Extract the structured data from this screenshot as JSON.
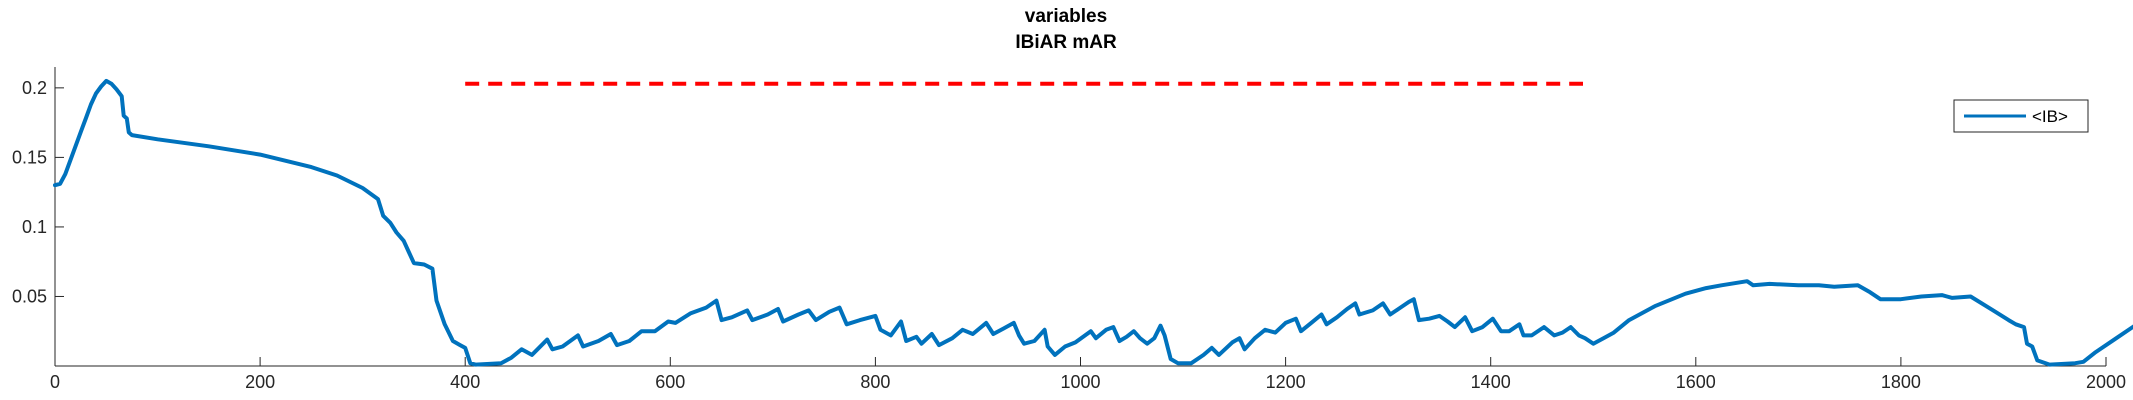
{
  "chart_data": {
    "type": "line",
    "title": "variables",
    "subtitle": "IBiAR mAR",
    "xlabel": "",
    "ylabel": "",
    "xlim": [
      0,
      2000
    ],
    "ylim": [
      0,
      0.215
    ],
    "x_ticks": [
      0,
      200,
      400,
      600,
      800,
      1000,
      1200,
      1400,
      1600,
      1800,
      2000
    ],
    "y_ticks": [
      0.05,
      0.1,
      0.15,
      0.2
    ],
    "y_tick_labels": [
      "0.05",
      "0.1",
      "0.15",
      "0.2"
    ],
    "grid": false,
    "legend_position": "top-right",
    "colors": {
      "series": "#0072BD",
      "reference": "#FF0000"
    },
    "reference_line": {
      "x": [
        400,
        1490
      ],
      "y": 0.203,
      "style": "dashed"
    },
    "series": [
      {
        "name": "<IB>",
        "points": [
          [
            0,
            0.13
          ],
          [
            5,
            0.131
          ],
          [
            10,
            0.138
          ],
          [
            15,
            0.148
          ],
          [
            20,
            0.158
          ],
          [
            25,
            0.168
          ],
          [
            30,
            0.178
          ],
          [
            35,
            0.188
          ],
          [
            40,
            0.196
          ],
          [
            45,
            0.201
          ],
          [
            50,
            0.205
          ],
          [
            55,
            0.203
          ],
          [
            60,
            0.199
          ],
          [
            65,
            0.194
          ],
          [
            67,
            0.18
          ],
          [
            70,
            0.178
          ],
          [
            72,
            0.168
          ],
          [
            75,
            0.166
          ],
          [
            100,
            0.163
          ],
          [
            150,
            0.158
          ],
          [
            200,
            0.152
          ],
          [
            250,
            0.143
          ],
          [
            275,
            0.137
          ],
          [
            300,
            0.128
          ],
          [
            315,
            0.12
          ],
          [
            320,
            0.108
          ],
          [
            327,
            0.103
          ],
          [
            333,
            0.096
          ],
          [
            340,
            0.09
          ],
          [
            345,
            0.082
          ],
          [
            350,
            0.074
          ],
          [
            360,
            0.073
          ],
          [
            368,
            0.07
          ],
          [
            372,
            0.047
          ],
          [
            380,
            0.03
          ],
          [
            388,
            0.018
          ],
          [
            395,
            0.015
          ],
          [
            400,
            0.013
          ],
          [
            405,
            0.002
          ],
          [
            410,
            0.001
          ],
          [
            435,
            0.002
          ],
          [
            445,
            0.006
          ],
          [
            455,
            0.012
          ],
          [
            465,
            0.008
          ],
          [
            480,
            0.019
          ],
          [
            485,
            0.012
          ],
          [
            495,
            0.014
          ],
          [
            510,
            0.022
          ],
          [
            515,
            0.014
          ],
          [
            530,
            0.018
          ],
          [
            542,
            0.023
          ],
          [
            548,
            0.015
          ],
          [
            560,
            0.018
          ],
          [
            572,
            0.025
          ],
          [
            585,
            0.025
          ],
          [
            598,
            0.032
          ],
          [
            605,
            0.031
          ],
          [
            620,
            0.038
          ],
          [
            635,
            0.042
          ],
          [
            645,
            0.047
          ],
          [
            650,
            0.033
          ],
          [
            660,
            0.035
          ],
          [
            675,
            0.04
          ],
          [
            680,
            0.033
          ],
          [
            695,
            0.037
          ],
          [
            705,
            0.041
          ],
          [
            710,
            0.032
          ],
          [
            725,
            0.037
          ],
          [
            735,
            0.04
          ],
          [
            742,
            0.033
          ],
          [
            755,
            0.039
          ],
          [
            765,
            0.042
          ],
          [
            772,
            0.03
          ],
          [
            785,
            0.033
          ],
          [
            800,
            0.036
          ],
          [
            805,
            0.026
          ],
          [
            815,
            0.022
          ],
          [
            825,
            0.032
          ],
          [
            830,
            0.018
          ],
          [
            840,
            0.021
          ],
          [
            845,
            0.016
          ],
          [
            855,
            0.023
          ],
          [
            862,
            0.015
          ],
          [
            875,
            0.02
          ],
          [
            885,
            0.026
          ],
          [
            895,
            0.023
          ],
          [
            908,
            0.031
          ],
          [
            915,
            0.023
          ],
          [
            925,
            0.027
          ],
          [
            935,
            0.031
          ],
          [
            940,
            0.022
          ],
          [
            945,
            0.016
          ],
          [
            955,
            0.018
          ],
          [
            965,
            0.026
          ],
          [
            968,
            0.014
          ],
          [
            975,
            0.008
          ],
          [
            985,
            0.014
          ],
          [
            995,
            0.017
          ],
          [
            1010,
            0.025
          ],
          [
            1015,
            0.02
          ],
          [
            1025,
            0.026
          ],
          [
            1032,
            0.028
          ],
          [
            1038,
            0.018
          ],
          [
            1045,
            0.021
          ],
          [
            1052,
            0.025
          ],
          [
            1058,
            0.02
          ],
          [
            1065,
            0.016
          ],
          [
            1072,
            0.02
          ],
          [
            1078,
            0.029
          ],
          [
            1082,
            0.022
          ],
          [
            1088,
            0.005
          ],
          [
            1095,
            0.002
          ],
          [
            1108,
            0.002
          ],
          [
            1120,
            0.008
          ],
          [
            1128,
            0.013
          ],
          [
            1135,
            0.008
          ],
          [
            1148,
            0.017
          ],
          [
            1155,
            0.02
          ],
          [
            1160,
            0.012
          ],
          [
            1170,
            0.02
          ],
          [
            1180,
            0.026
          ],
          [
            1190,
            0.024
          ],
          [
            1200,
            0.031
          ],
          [
            1210,
            0.034
          ],
          [
            1215,
            0.025
          ],
          [
            1225,
            0.031
          ],
          [
            1235,
            0.037
          ],
          [
            1240,
            0.03
          ],
          [
            1250,
            0.035
          ],
          [
            1260,
            0.041
          ],
          [
            1268,
            0.045
          ],
          [
            1272,
            0.037
          ],
          [
            1285,
            0.04
          ],
          [
            1295,
            0.045
          ],
          [
            1302,
            0.037
          ],
          [
            1310,
            0.041
          ],
          [
            1320,
            0.046
          ],
          [
            1325,
            0.048
          ],
          [
            1330,
            0.033
          ],
          [
            1340,
            0.034
          ],
          [
            1350,
            0.036
          ],
          [
            1358,
            0.032
          ],
          [
            1365,
            0.028
          ],
          [
            1375,
            0.035
          ],
          [
            1382,
            0.025
          ],
          [
            1392,
            0.028
          ],
          [
            1402,
            0.034
          ],
          [
            1410,
            0.025
          ],
          [
            1418,
            0.025
          ],
          [
            1428,
            0.03
          ],
          [
            1432,
            0.022
          ],
          [
            1440,
            0.022
          ],
          [
            1452,
            0.028
          ],
          [
            1462,
            0.022
          ],
          [
            1470,
            0.024
          ],
          [
            1478,
            0.028
          ],
          [
            1486,
            0.022
          ],
          [
            1492,
            0.02
          ],
          [
            1500,
            0.016
          ],
          [
            1510,
            0.02
          ],
          [
            1520,
            0.024
          ],
          [
            1535,
            0.033
          ],
          [
            1560,
            0.043
          ],
          [
            1590,
            0.052
          ],
          [
            1610,
            0.056
          ],
          [
            1625,
            0.058
          ],
          [
            1650,
            0.061
          ],
          [
            1656,
            0.058
          ],
          [
            1672,
            0.059
          ],
          [
            1700,
            0.058
          ],
          [
            1720,
            0.058
          ],
          [
            1735,
            0.057
          ],
          [
            1758,
            0.058
          ],
          [
            1770,
            0.053
          ],
          [
            1780,
            0.048
          ],
          [
            1800,
            0.048
          ],
          [
            1820,
            0.05
          ],
          [
            1840,
            0.051
          ],
          [
            1845,
            0.05
          ],
          [
            1850,
            0.049
          ],
          [
            1868,
            0.05
          ],
          [
            1890,
            0.04
          ],
          [
            1905,
            0.033
          ],
          [
            1912,
            0.03
          ],
          [
            1920,
            0.028
          ],
          [
            1923,
            0.016
          ],
          [
            1928,
            0.014
          ],
          [
            1933,
            0.004
          ],
          [
            1945,
            0.001
          ],
          [
            1970,
            0.002
          ],
          [
            1978,
            0.003
          ],
          [
            1990,
            0.01
          ],
          [
            2010,
            0.02
          ],
          [
            2030,
            0.03
          ],
          [
            2050,
            0.038
          ],
          [
            2070,
            0.046
          ],
          [
            2085,
            0.052
          ],
          [
            2090,
            0.054
          ]
        ]
      }
    ]
  }
}
